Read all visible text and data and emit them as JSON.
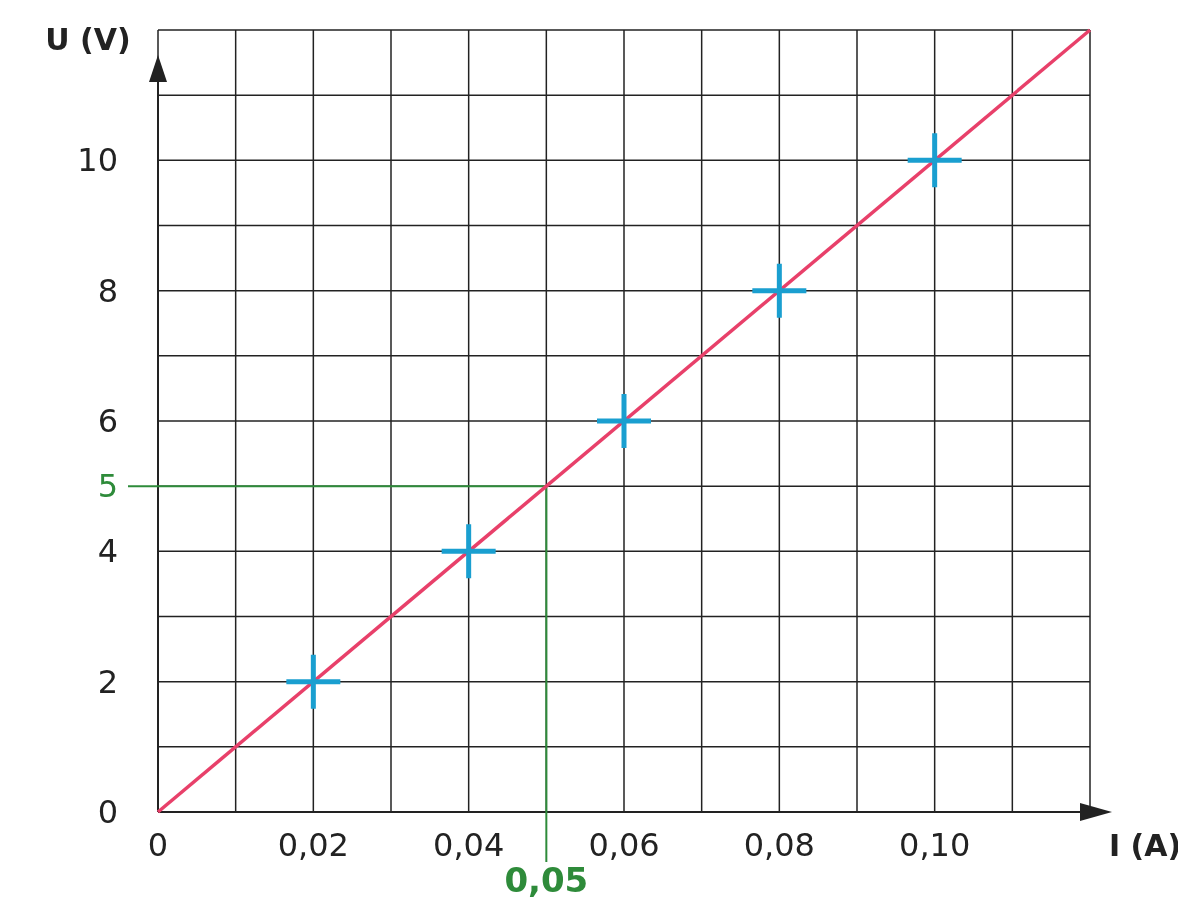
{
  "chart_data": {
    "type": "scatter",
    "xlabel": "I (A)",
    "ylabel": "U (V)",
    "xlim": [
      0,
      0.12
    ],
    "ylim": [
      0,
      12
    ],
    "xticks": [
      {
        "value": 0,
        "label": "0"
      },
      {
        "value": 0.01,
        "label": null
      },
      {
        "value": 0.02,
        "label": "0,02"
      },
      {
        "value": 0.03,
        "label": null
      },
      {
        "value": 0.04,
        "label": "0,04"
      },
      {
        "value": 0.05,
        "label": null
      },
      {
        "value": 0.06,
        "label": "0,06"
      },
      {
        "value": 0.07,
        "label": null
      },
      {
        "value": 0.08,
        "label": "0,08"
      },
      {
        "value": 0.09,
        "label": null
      },
      {
        "value": 0.1,
        "label": "0,10"
      },
      {
        "value": 0.11,
        "label": null
      },
      {
        "value": 0.12,
        "label": null
      }
    ],
    "yticks": [
      0,
      {
        "value": 1,
        "label": null
      },
      2,
      {
        "value": 3,
        "label": null
      },
      4,
      {
        "value": 5,
        "label": null
      },
      6,
      {
        "value": 7,
        "label": null
      },
      8,
      {
        "value": 9,
        "label": null
      },
      10,
      {
        "value": 11,
        "label": null
      },
      {
        "value": 12,
        "label": null
      }
    ],
    "grid": true,
    "series": [
      {
        "type": "line",
        "color": "#e8406a",
        "x": [
          0,
          0.12
        ],
        "values": [
          0,
          12
        ]
      },
      {
        "type": "scatter",
        "color": "#1a9fd0",
        "x": [
          0.02,
          0.04,
          0.06,
          0.08,
          0.1
        ],
        "values": [
          2,
          4,
          6,
          8,
          10
        ],
        "marker": "cross"
      }
    ],
    "ref_lines": [
      {
        "axis": "x",
        "value": 0.05,
        "label": "0,05",
        "color": "#2e8b3a"
      },
      {
        "axis": "y",
        "value": 5,
        "label": "5",
        "color": "#2e8b3a"
      }
    ]
  }
}
